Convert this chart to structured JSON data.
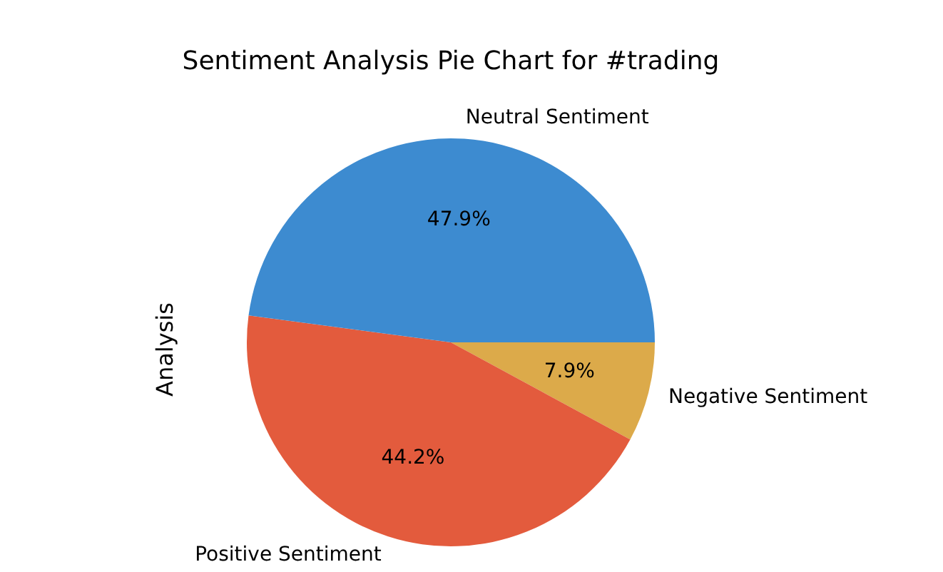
{
  "chart_data": {
    "type": "pie",
    "title": "Sentiment Analysis Pie Chart for #trading",
    "ylabel": "Analysis",
    "categories": [
      "Neutral Sentiment",
      "Positive Sentiment",
      "Negative Sentiment"
    ],
    "values": [
      47.9,
      44.2,
      7.9
    ],
    "value_labels": [
      "47.9%",
      "44.2%",
      "7.9%"
    ],
    "colors": [
      "#3d8bd0",
      "#e35b3d",
      "#dcaa4a"
    ]
  }
}
